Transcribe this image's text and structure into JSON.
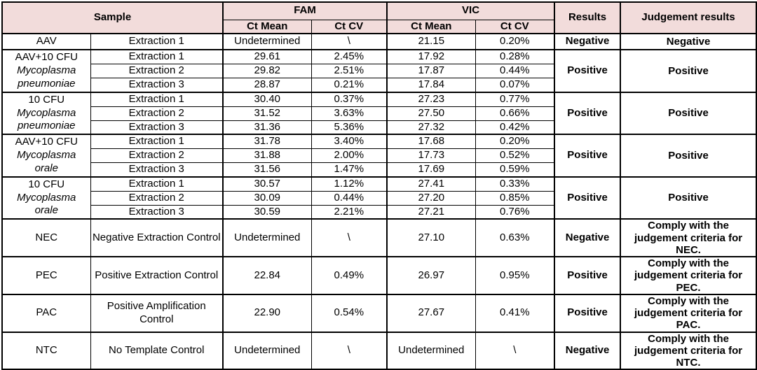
{
  "table": {
    "headers": {
      "sample": "Sample",
      "fam": "FAM",
      "vic": "VIC",
      "ct_mean": "Ct Mean",
      "ct_cv": "Ct CV",
      "results": "Results",
      "judgement": "Judgement results"
    },
    "groups": [
      {
        "sample_lines": [
          {
            "text": "AAV",
            "italic": false
          }
        ],
        "rows": [
          {
            "label": "Extraction 1",
            "fam_ct_mean": "Undetermined",
            "fam_ct_cv": "\\",
            "vic_ct_mean": "21.15",
            "vic_ct_cv": "0.20%"
          }
        ],
        "result": "Negative",
        "judgement": "Negative"
      },
      {
        "sample_lines": [
          {
            "text": "AAV+10 CFU",
            "italic": false
          },
          {
            "text": "Mycoplasma",
            "italic": true
          },
          {
            "text": "pneumoniae",
            "italic": true
          }
        ],
        "rows": [
          {
            "label": "Extraction 1",
            "fam_ct_mean": "29.61",
            "fam_ct_cv": "2.45%",
            "vic_ct_mean": "17.92",
            "vic_ct_cv": "0.28%"
          },
          {
            "label": "Extraction 2",
            "fam_ct_mean": "29.82",
            "fam_ct_cv": "2.51%",
            "vic_ct_mean": "17.87",
            "vic_ct_cv": "0.44%"
          },
          {
            "label": "Extraction 3",
            "fam_ct_mean": "28.87",
            "fam_ct_cv": "0.21%",
            "vic_ct_mean": "17.84",
            "vic_ct_cv": "0.07%"
          }
        ],
        "result": "Positive",
        "judgement": "Positive"
      },
      {
        "sample_lines": [
          {
            "text": "10 CFU",
            "italic": false
          },
          {
            "text": "Mycoplasma",
            "italic": true
          },
          {
            "text": "pneumoniae",
            "italic": true
          }
        ],
        "rows": [
          {
            "label": "Extraction 1",
            "fam_ct_mean": "30.40",
            "fam_ct_cv": "0.37%",
            "vic_ct_mean": "27.23",
            "vic_ct_cv": "0.77%"
          },
          {
            "label": "Extraction 2",
            "fam_ct_mean": "31.52",
            "fam_ct_cv": "3.63%",
            "vic_ct_mean": "27.50",
            "vic_ct_cv": "0.66%"
          },
          {
            "label": "Extraction 3",
            "fam_ct_mean": "31.36",
            "fam_ct_cv": "5.36%",
            "vic_ct_mean": "27.32",
            "vic_ct_cv": "0.42%"
          }
        ],
        "result": "Positive",
        "judgement": "Positive"
      },
      {
        "sample_lines": [
          {
            "text": "AAV+10 CFU",
            "italic": false
          },
          {
            "text": "Mycoplasma",
            "italic": true
          },
          {
            "text": "orale",
            "italic": true
          }
        ],
        "rows": [
          {
            "label": "Extraction 1",
            "fam_ct_mean": "31.78",
            "fam_ct_cv": "3.40%",
            "vic_ct_mean": "17.68",
            "vic_ct_cv": "0.20%"
          },
          {
            "label": "Extraction 2",
            "fam_ct_mean": "31.88",
            "fam_ct_cv": "2.00%",
            "vic_ct_mean": "17.73",
            "vic_ct_cv": "0.52%"
          },
          {
            "label": "Extraction 3",
            "fam_ct_mean": "31.56",
            "fam_ct_cv": "1.47%",
            "vic_ct_mean": "17.69",
            "vic_ct_cv": "0.59%"
          }
        ],
        "result": "Positive",
        "judgement": "Positive"
      },
      {
        "sample_lines": [
          {
            "text": "10 CFU",
            "italic": false
          },
          {
            "text": "Mycoplasma",
            "italic": true
          },
          {
            "text": "orale",
            "italic": true
          }
        ],
        "rows": [
          {
            "label": "Extraction 1",
            "fam_ct_mean": "30.57",
            "fam_ct_cv": "1.12%",
            "vic_ct_mean": "27.41",
            "vic_ct_cv": "0.33%"
          },
          {
            "label": "Extraction 2",
            "fam_ct_mean": "30.09",
            "fam_ct_cv": "0.44%",
            "vic_ct_mean": "27.20",
            "vic_ct_cv": "0.85%"
          },
          {
            "label": "Extraction 3",
            "fam_ct_mean": "30.59",
            "fam_ct_cv": "2.21%",
            "vic_ct_mean": "27.21",
            "vic_ct_cv": "0.76%"
          }
        ],
        "result": "Positive",
        "judgement": "Positive"
      },
      {
        "sample_lines": [
          {
            "text": "NEC",
            "italic": false
          }
        ],
        "rows": [
          {
            "label": "Negative Extraction Control",
            "fam_ct_mean": "Undetermined",
            "fam_ct_cv": "\\",
            "vic_ct_mean": "27.10",
            "vic_ct_cv": "0.63%"
          }
        ],
        "result": "Negative",
        "judgement": "Comply with the judgement criteria for NEC."
      },
      {
        "sample_lines": [
          {
            "text": "PEC",
            "italic": false
          }
        ],
        "rows": [
          {
            "label": "Positive Extraction Control",
            "fam_ct_mean": "22.84",
            "fam_ct_cv": "0.49%",
            "vic_ct_mean": "26.97",
            "vic_ct_cv": "0.95%"
          }
        ],
        "result": "Positive",
        "judgement": "Comply with the judgement criteria for PEC."
      },
      {
        "sample_lines": [
          {
            "text": "PAC",
            "italic": false
          }
        ],
        "rows": [
          {
            "label": "Positive Amplification Control",
            "fam_ct_mean": "22.90",
            "fam_ct_cv": "0.54%",
            "vic_ct_mean": "27.67",
            "vic_ct_cv": "0.41%"
          }
        ],
        "result": "Positive",
        "judgement": "Comply with the judgement criteria for PAC."
      },
      {
        "sample_lines": [
          {
            "text": "NTC",
            "italic": false
          }
        ],
        "rows": [
          {
            "label": "No Template Control",
            "fam_ct_mean": "Undetermined",
            "fam_ct_cv": "\\",
            "vic_ct_mean": "Undetermined",
            "vic_ct_cv": "\\"
          }
        ],
        "result": "Negative",
        "judgement": "Comply with the judgement criteria for NTC."
      }
    ],
    "colors": {
      "header_fill": "#f2dcdb",
      "border": "#000000",
      "text": "#000000"
    }
  }
}
